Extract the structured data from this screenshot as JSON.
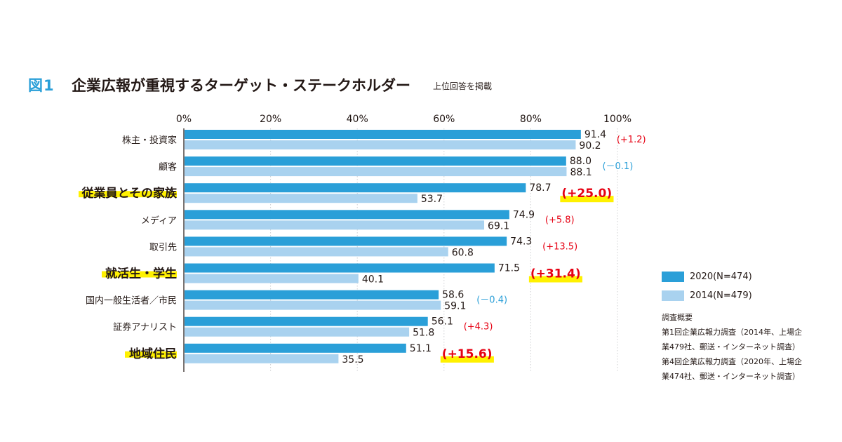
{
  "figure": {
    "number": "図1",
    "title": "企業広報が重視するターゲット・ステークホルダー",
    "subtitle": "上位回答を掲載"
  },
  "legend": {
    "series_2020": "2020(N=474)",
    "series_2014": "2014(N=479)"
  },
  "notes": {
    "heading": "調査概要",
    "lines": [
      "第1回企業広報力調査（2014年、上場企",
      "業479社、郵送・インターネット調査）",
      "第4回企業広報力調査（2020年、上場企",
      "業474社、郵送・インターネット調査）"
    ]
  },
  "colors": {
    "series_2020": "#2a9fd8",
    "series_2014": "#a9d2ef",
    "positive": "#e60012",
    "negative": "#2a9fd8",
    "highlight": "#fff100",
    "title_accent": "#2a9fd8"
  },
  "chart_data": {
    "type": "bar",
    "orientation": "horizontal",
    "title": "企業広報が重視するターゲット・ステークホルダー",
    "xlim": [
      0,
      100
    ],
    "xticks": [
      "0%",
      "20%",
      "40%",
      "60%",
      "80%",
      "100%"
    ],
    "xtick_values": [
      0,
      20,
      40,
      60,
      80,
      100
    ],
    "grid": true,
    "legend_position": "right",
    "categories": [
      "株主・投資家",
      "顧客",
      "従業員とその家族",
      "メディア",
      "取引先",
      "就活生・学生",
      "国内一般生活者／市民",
      "証券アナリスト",
      "地域住民"
    ],
    "highlighted": [
      false,
      false,
      true,
      false,
      false,
      true,
      false,
      false,
      true
    ],
    "series": [
      {
        "name": "2020(N=474)",
        "values": [
          91.4,
          88.0,
          78.7,
          74.9,
          74.3,
          71.5,
          58.6,
          56.1,
          51.1
        ],
        "labels": [
          "91.4",
          "88.0",
          "78.7",
          "74.9",
          "74.3",
          "71.5",
          "58.6",
          "56.1",
          "51.1"
        ]
      },
      {
        "name": "2014(N=479)",
        "values": [
          90.2,
          88.1,
          53.7,
          69.1,
          60.8,
          40.1,
          59.1,
          51.8,
          35.5
        ],
        "labels": [
          "90.2",
          "88.1",
          "53.7",
          "69.1",
          "60.8",
          "40.1",
          "59.1",
          "51.8",
          "35.5"
        ]
      }
    ],
    "differences": [
      "(+1.2)",
      "(－0.1)",
      "(+25.0)",
      "(+5.8)",
      "(+13.5)",
      "(+31.4)",
      "(－0.4)",
      "(+4.3)",
      "(+15.6)"
    ]
  }
}
